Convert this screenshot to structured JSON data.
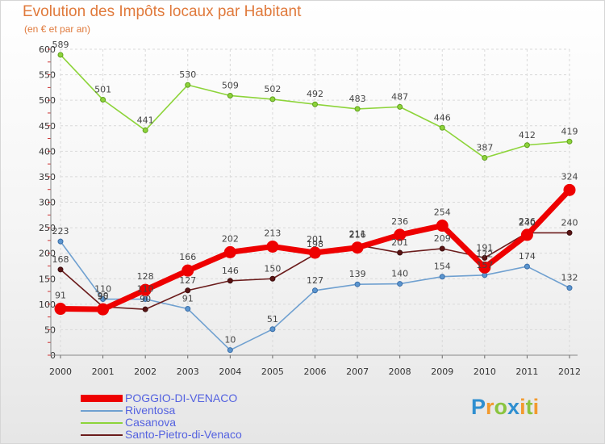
{
  "chart_data": {
    "type": "line",
    "title": "Evolution des Impôts locaux par Habitant",
    "subtitle": "(en € et par an)",
    "x": [
      "2000",
      "2001",
      "2002",
      "2003",
      "2004",
      "2005",
      "2006",
      "2007",
      "2008",
      "2009",
      "2010",
      "2011",
      "2012"
    ],
    "ylim": [
      0,
      600
    ],
    "yticks": [
      "0",
      "50",
      "100",
      "150",
      "200",
      "250",
      "300",
      "350",
      "400",
      "450",
      "500",
      "550",
      "600"
    ],
    "grid": true,
    "legend_position": "bottom-left",
    "series": [
      {
        "name": "Casanova",
        "color": "#8dd43a",
        "values": [
          589,
          501,
          441,
          530,
          509,
          502,
          492,
          483,
          487,
          446,
          387,
          412,
          419
        ],
        "labels": [
          "589",
          "501",
          "441",
          "530",
          "509",
          "502",
          "492",
          "483",
          "487",
          "446",
          "387",
          "412",
          "419"
        ]
      },
      {
        "name": "Riventosa",
        "color": "#6fa0d0",
        "values": [
          223,
          110,
          110,
          91,
          10,
          51,
          127,
          139,
          140,
          154,
          157,
          174,
          132
        ],
        "labels": [
          "223",
          "110",
          "110",
          "91",
          "10",
          "51",
          "127",
          "139",
          "140",
          "154",
          "157",
          "174",
          "132"
        ]
      },
      {
        "name": "Santo-Pietro-di-Venaco",
        "color": "#6b1c1c",
        "values": [
          168,
          95,
          90,
          127,
          146,
          150,
          198,
          216,
          201,
          209,
          191,
          240,
          240
        ],
        "labels": [
          "168",
          "95",
          "90",
          "127",
          "146",
          "150",
          "198",
          "216",
          "201",
          "209",
          "191",
          "240",
          "240"
        ]
      },
      {
        "name": "POGGIO-DI-VENACO",
        "color": "#ee0000",
        "values": [
          91,
          90,
          128,
          166,
          202,
          213,
          201,
          211,
          236,
          254,
          172,
          236,
          324
        ],
        "labels": [
          "91",
          "90",
          "128",
          "166",
          "202",
          "213",
          "201",
          "211",
          "236",
          "254",
          "172",
          "236",
          "324"
        ]
      }
    ],
    "legend": [
      "POGGIO-DI-VENACO",
      "Riventosa",
      "Casanova",
      "Santo-Pietro-di-Venaco"
    ]
  },
  "branding": {
    "letters": [
      "P",
      "r",
      "o",
      "x",
      "i",
      "t",
      "i"
    ],
    "colors": [
      "#2f8fd0",
      "#f29a2e",
      "#8ac43f",
      "#2f8fd0",
      "#f29a2e",
      "#8ac43f",
      "#f29a2e"
    ]
  }
}
